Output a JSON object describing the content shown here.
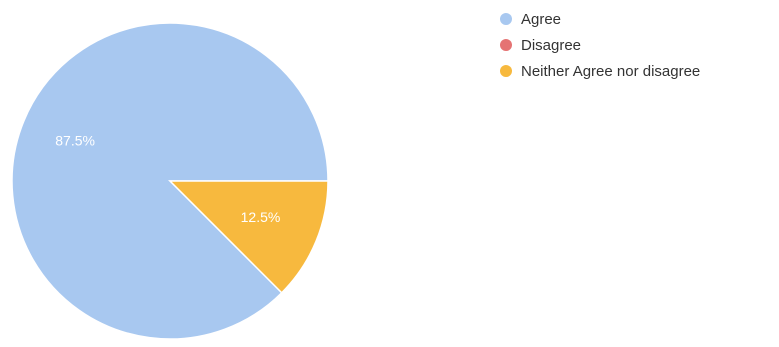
{
  "chart_data": {
    "type": "pie",
    "title": "",
    "slices": [
      {
        "label": "Agree",
        "value": 87.5,
        "display": "87.5%",
        "color": "#a8c8f0"
      },
      {
        "label": "Disagree",
        "value": 0,
        "display": "",
        "color": "#e57373"
      },
      {
        "label": "Neither Agree nor disagree",
        "value": 12.5,
        "display": "12.5%",
        "color": "#f7b93e"
      }
    ],
    "legend_position": "top-right",
    "start_angle_deg": 0,
    "direction": "counterclockwise"
  }
}
